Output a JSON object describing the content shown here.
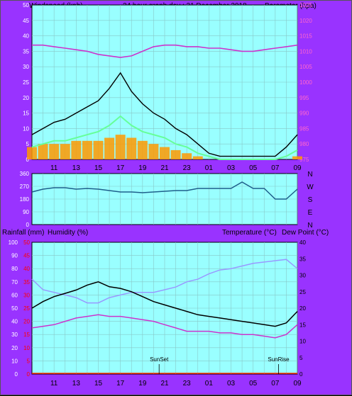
{
  "header": {
    "left": "Windspeed (kph)",
    "center": "24 hour graph day : 31 December 2018",
    "right": "Barometer (hpa)"
  },
  "colors": {
    "frame": "#9933ff",
    "plot_bg": "#99ffff",
    "barometer": "#cc33cc",
    "windspeed": "#000000",
    "windavg": "#66ff99",
    "gust_bars": "#ff9900",
    "direction": "#1f5f8b",
    "temperature": "#000000",
    "dewpoint": "#cc33cc",
    "humidity": "#9999ff",
    "rain_axis": "#ff0000"
  },
  "x_labels": [
    "11",
    "13",
    "15",
    "17",
    "19",
    "21",
    "23",
    "01",
    "03",
    "05",
    "07",
    "09"
  ],
  "chart_data": [
    {
      "type": "line",
      "id": "wind",
      "y_left": {
        "label": "Windspeed (kph)",
        "range": [
          0,
          50
        ],
        "ticks": [
          0,
          5,
          10,
          15,
          20,
          25,
          30,
          35,
          40,
          45,
          50
        ]
      },
      "y_right": {
        "label": "Barometer (hpa)",
        "range": [
          975,
          1025
        ],
        "ticks": [
          975,
          980,
          985,
          990,
          995,
          1000,
          1005,
          1010,
          1015,
          1020,
          1025
        ]
      },
      "hours": [
        9,
        10,
        11,
        12,
        13,
        14,
        15,
        16,
        17,
        18,
        19,
        20,
        21,
        22,
        23,
        24,
        25,
        26,
        27,
        28,
        29,
        30,
        31,
        32,
        33
      ],
      "series": [
        {
          "id": "baro",
          "axis": "right",
          "values": [
            1012,
            1012,
            1011.5,
            1011,
            1010.5,
            1010,
            1009,
            1008.5,
            1008,
            1008.5,
            1010,
            1011.5,
            1012,
            1012,
            1011.5,
            1011.5,
            1011,
            1011,
            1010.5,
            1010,
            1010,
            1010.5,
            1011,
            1011.5,
            1012
          ]
        },
        {
          "id": "speed",
          "axis": "left",
          "values": [
            8,
            10,
            12,
            13,
            15,
            17,
            19,
            23,
            28,
            22,
            18,
            15,
            13,
            10,
            8,
            5,
            2,
            1,
            1,
            1,
            1,
            1,
            1,
            4,
            8
          ]
        },
        {
          "id": "avg",
          "axis": "left",
          "values": [
            4,
            5,
            6,
            6,
            7,
            8,
            9,
            11,
            14,
            11,
            9,
            8,
            7,
            5,
            4,
            2,
            1,
            0,
            0,
            0,
            0,
            0,
            0,
            1,
            3
          ]
        },
        {
          "id": "gust",
          "axis": "left",
          "values": [
            4,
            5,
            5,
            5,
            6,
            6,
            6,
            7,
            8,
            7,
            6,
            5,
            4,
            3,
            2,
            1,
            0,
            0,
            0,
            0,
            0,
            0,
            0,
            0,
            1
          ]
        }
      ]
    },
    {
      "type": "line",
      "id": "direction",
      "y_right": {
        "labels": [
          "N",
          "W",
          "S",
          "E",
          "N"
        ],
        "range": [
          0,
          360
        ]
      },
      "y_left_ticks": [
        0,
        90,
        180,
        270,
        360
      ],
      "hours": [
        9,
        10,
        11,
        12,
        13,
        14,
        15,
        16,
        17,
        18,
        19,
        20,
        21,
        22,
        23,
        24,
        25,
        26,
        27,
        28,
        29,
        30,
        31,
        31.5,
        32,
        33
      ],
      "values": [
        230,
        250,
        260,
        260,
        250,
        255,
        250,
        240,
        230,
        230,
        225,
        230,
        235,
        240,
        240,
        255,
        255,
        255,
        255,
        300,
        255,
        255,
        180,
        180,
        180,
        250
      ]
    },
    {
      "type": "line",
      "id": "temp",
      "labels": {
        "rain": "Rainfall (mm)",
        "humidity": "Humidity (%)",
        "temperature": "Temperature (°C)",
        "dewpoint": "Dew Point (°C)"
      },
      "y_left_humidity": {
        "range": [
          0,
          100
        ],
        "ticks": [
          0,
          10,
          20,
          30,
          40,
          50,
          60,
          70,
          80,
          90,
          100
        ]
      },
      "y_left_rain": {
        "range": [
          0,
          50
        ],
        "ticks": [
          0,
          5,
          10,
          15,
          20,
          25,
          30,
          35,
          40,
          45,
          50
        ]
      },
      "y_right": {
        "range": [
          0,
          40
        ],
        "ticks": [
          0,
          5,
          10,
          15,
          20,
          25,
          30,
          35,
          40
        ]
      },
      "hours": [
        9,
        10,
        11,
        12,
        13,
        14,
        15,
        16,
        17,
        18,
        19,
        20,
        21,
        22,
        23,
        24,
        25,
        26,
        27,
        28,
        29,
        30,
        31,
        32,
        33
      ],
      "series": [
        {
          "id": "temperature",
          "values": [
            20,
            22,
            23.5,
            24.5,
            25.5,
            27,
            28,
            26.5,
            26,
            25,
            23.5,
            22,
            21,
            20,
            19,
            18,
            17.5,
            17,
            16.5,
            16,
            15.5,
            15,
            14.5,
            15.5,
            19
          ]
        },
        {
          "id": "dewpoint",
          "values": [
            14,
            14.5,
            15,
            16,
            17,
            17.5,
            18,
            17.5,
            17.5,
            17,
            16.5,
            16,
            15,
            14,
            13,
            13,
            13,
            12.5,
            12.5,
            12,
            12,
            11.5,
            11,
            12,
            15
          ]
        },
        {
          "id": "humidity",
          "values": [
            72,
            64,
            62,
            60,
            58,
            54,
            54,
            58,
            60,
            62,
            62,
            62,
            64,
            66,
            70,
            72,
            76,
            79,
            80,
            82,
            84,
            85,
            86,
            87,
            80
          ]
        }
      ],
      "annotations": [
        {
          "label": "SunSet",
          "hour": 20.5
        },
        {
          "label": "SunRise",
          "hour": 31.3
        }
      ]
    }
  ]
}
